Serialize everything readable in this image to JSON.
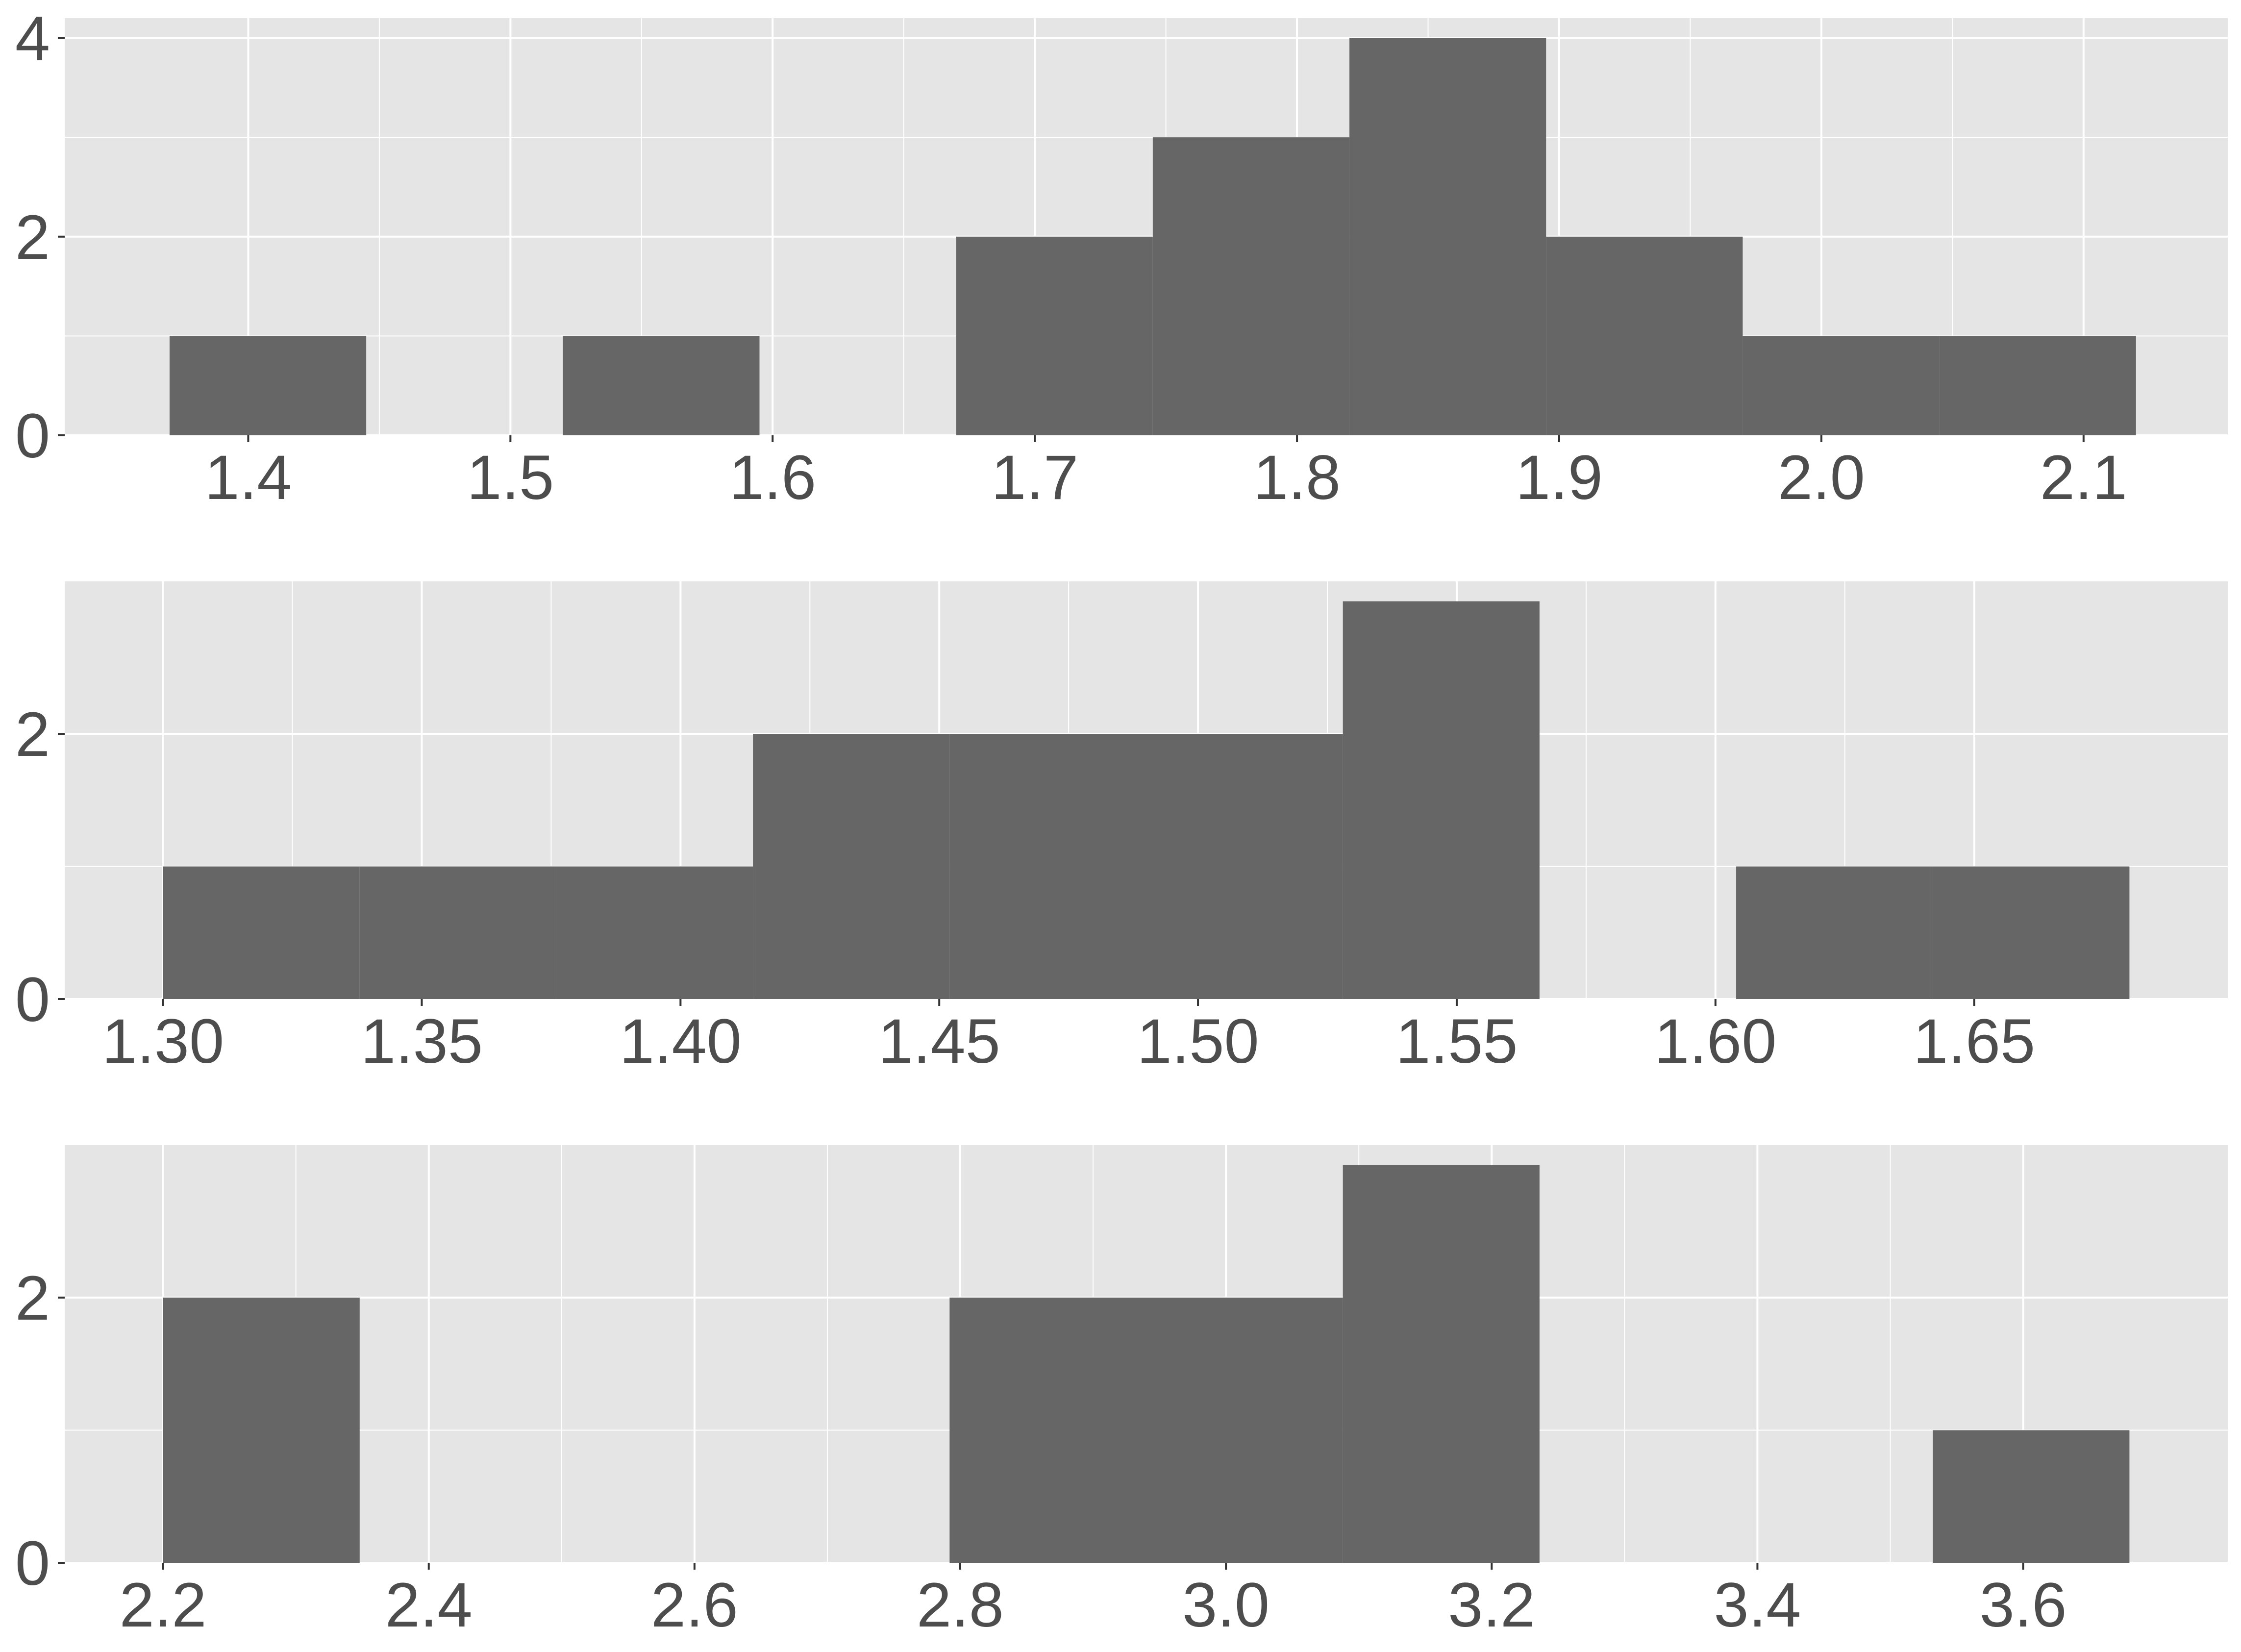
{
  "colors": {
    "panel_background": "#e5e5e5",
    "grid_line": "#ffffff",
    "bar_fill": "#666666",
    "tick_text": "#4d4d4d",
    "page_background": "#ffffff"
  },
  "chart_data": [
    {
      "type": "bar",
      "subtype": "histogram",
      "grid": true,
      "xlim": [
        1.33,
        2.155
      ],
      "ylim": [
        0,
        4.2
      ],
      "x_ticks": [
        {
          "value": 1.4,
          "label": "1.4"
        },
        {
          "value": 1.5,
          "label": "1.5"
        },
        {
          "value": 1.6,
          "label": "1.6"
        },
        {
          "value": 1.7,
          "label": "1.7"
        },
        {
          "value": 1.8,
          "label": "1.8"
        },
        {
          "value": 1.9,
          "label": "1.9"
        },
        {
          "value": 2.0,
          "label": "2.0"
        },
        {
          "value": 2.1,
          "label": "2.1"
        }
      ],
      "y_ticks": [
        {
          "value": 0,
          "label": "0"
        },
        {
          "value": 2,
          "label": "2"
        },
        {
          "value": 4,
          "label": "4"
        }
      ],
      "bins": [
        {
          "x0": 1.37,
          "x1": 1.445,
          "count": 1
        },
        {
          "x0": 1.445,
          "x1": 1.52,
          "count": 0
        },
        {
          "x0": 1.52,
          "x1": 1.595,
          "count": 1
        },
        {
          "x0": 1.595,
          "x1": 1.67,
          "count": 0
        },
        {
          "x0": 1.67,
          "x1": 1.745,
          "count": 2
        },
        {
          "x0": 1.745,
          "x1": 1.82,
          "count": 3
        },
        {
          "x0": 1.82,
          "x1": 1.895,
          "count": 4
        },
        {
          "x0": 1.895,
          "x1": 1.97,
          "count": 2
        },
        {
          "x0": 1.97,
          "x1": 2.045,
          "count": 1
        },
        {
          "x0": 2.045,
          "x1": 2.12,
          "count": 1
        }
      ]
    },
    {
      "type": "bar",
      "subtype": "histogram",
      "grid": true,
      "xlim": [
        1.281,
        1.699
      ],
      "ylim": [
        0,
        3.15
      ],
      "x_ticks": [
        {
          "value": 1.3,
          "label": "1.30"
        },
        {
          "value": 1.35,
          "label": "1.35"
        },
        {
          "value": 1.4,
          "label": "1.40"
        },
        {
          "value": 1.45,
          "label": "1.45"
        },
        {
          "value": 1.5,
          "label": "1.50"
        },
        {
          "value": 1.55,
          "label": "1.55"
        },
        {
          "value": 1.6,
          "label": "1.60"
        },
        {
          "value": 1.65,
          "label": "1.65"
        }
      ],
      "y_ticks": [
        {
          "value": 0,
          "label": "0"
        },
        {
          "value": 2,
          "label": "2"
        }
      ],
      "bins": [
        {
          "x0": 1.3,
          "x1": 1.338,
          "count": 1
        },
        {
          "x0": 1.338,
          "x1": 1.376,
          "count": 1
        },
        {
          "x0": 1.376,
          "x1": 1.414,
          "count": 1
        },
        {
          "x0": 1.414,
          "x1": 1.452,
          "count": 2
        },
        {
          "x0": 1.452,
          "x1": 1.49,
          "count": 2
        },
        {
          "x0": 1.49,
          "x1": 1.528,
          "count": 2
        },
        {
          "x0": 1.528,
          "x1": 1.566,
          "count": 3
        },
        {
          "x0": 1.566,
          "x1": 1.604,
          "count": 0
        },
        {
          "x0": 1.604,
          "x1": 1.642,
          "count": 1
        },
        {
          "x0": 1.642,
          "x1": 1.68,
          "count": 1
        }
      ]
    },
    {
      "type": "bar",
      "subtype": "histogram",
      "grid": true,
      "xlim": [
        2.126,
        3.754
      ],
      "ylim": [
        0,
        3.15
      ],
      "x_ticks": [
        {
          "value": 2.2,
          "label": "2.2"
        },
        {
          "value": 2.4,
          "label": "2.4"
        },
        {
          "value": 2.6,
          "label": "2.6"
        },
        {
          "value": 2.8,
          "label": "2.8"
        },
        {
          "value": 3.0,
          "label": "3.0"
        },
        {
          "value": 3.2,
          "label": "3.2"
        },
        {
          "value": 3.4,
          "label": "3.4"
        },
        {
          "value": 3.6,
          "label": "3.6"
        }
      ],
      "y_ticks": [
        {
          "value": 0,
          "label": "0"
        },
        {
          "value": 2,
          "label": "2"
        }
      ],
      "bins": [
        {
          "x0": 2.2,
          "x1": 2.348,
          "count": 2
        },
        {
          "x0": 2.348,
          "x1": 2.496,
          "count": 0
        },
        {
          "x0": 2.496,
          "x1": 2.644,
          "count": 0
        },
        {
          "x0": 2.644,
          "x1": 2.792,
          "count": 0
        },
        {
          "x0": 2.792,
          "x1": 2.94,
          "count": 2
        },
        {
          "x0": 2.94,
          "x1": 3.088,
          "count": 2
        },
        {
          "x0": 3.088,
          "x1": 3.236,
          "count": 3
        },
        {
          "x0": 3.236,
          "x1": 3.384,
          "count": 0
        },
        {
          "x0": 3.384,
          "x1": 3.532,
          "count": 0
        },
        {
          "x0": 3.532,
          "x1": 3.68,
          "count": 1
        }
      ]
    }
  ]
}
